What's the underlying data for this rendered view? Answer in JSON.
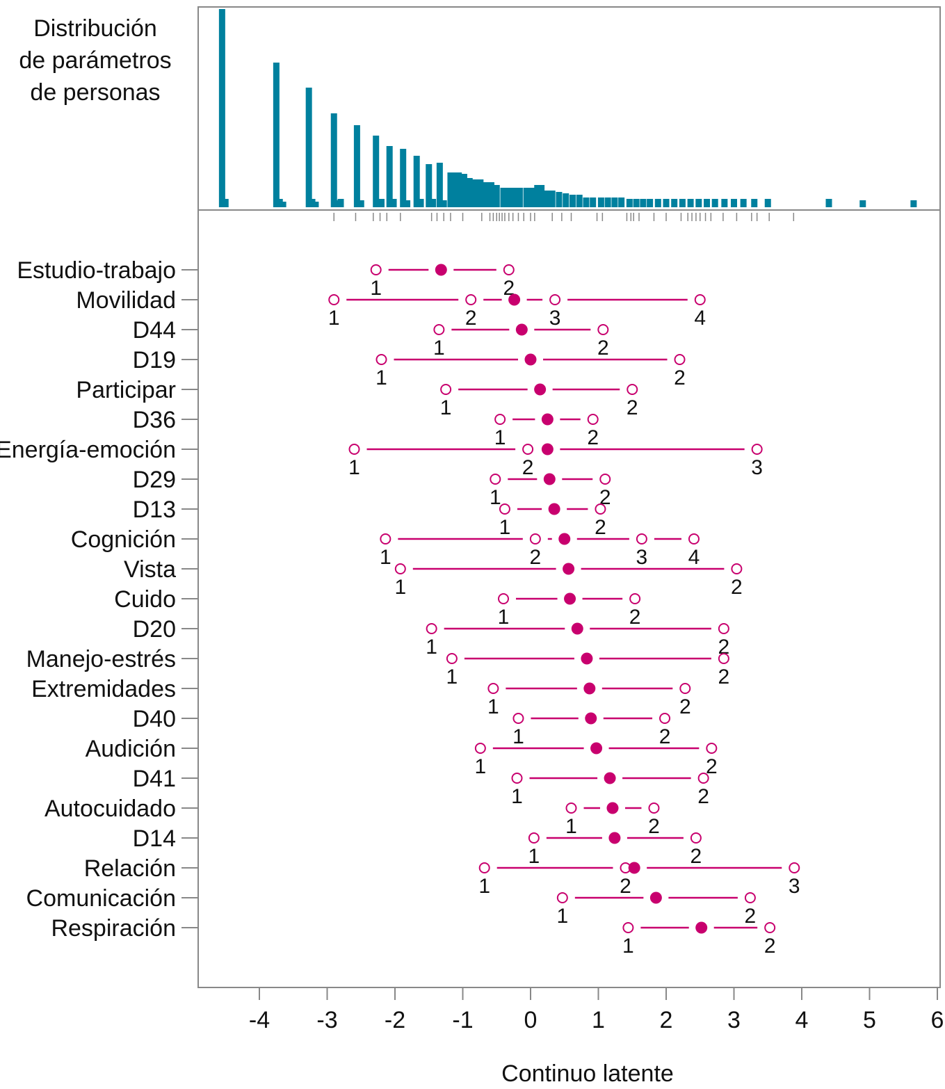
{
  "chart_data": [
    {
      "type": "bar",
      "title": "Distribución de parámetros de personas",
      "title_lines": [
        "Distribución",
        "de parámetros",
        "de personas"
      ],
      "colors": {
        "bar": "#00809E"
      },
      "xlim": [
        -4.9,
        6.0
      ],
      "bars": [
        {
          "x": -4.55,
          "h": 285
        },
        {
          "x": -4.5,
          "h": 12
        },
        {
          "x": -3.75,
          "h": 208
        },
        {
          "x": -3.7,
          "h": 12
        },
        {
          "x": -3.65,
          "h": 8
        },
        {
          "x": -3.27,
          "h": 172
        },
        {
          "x": -3.22,
          "h": 12
        },
        {
          "x": -3.17,
          "h": 8
        },
        {
          "x": -2.9,
          "h": 135
        },
        {
          "x": -2.85,
          "h": 10
        },
        {
          "x": -2.8,
          "h": 12
        },
        {
          "x": -2.56,
          "h": 118
        },
        {
          "x": -2.5,
          "h": 10
        },
        {
          "x": -2.28,
          "h": 103
        },
        {
          "x": -2.2,
          "h": 12
        },
        {
          "x": -2.08,
          "h": 88
        },
        {
          "x": -2.02,
          "h": 12
        },
        {
          "x": -1.88,
          "h": 84
        },
        {
          "x": -1.82,
          "h": 10
        },
        {
          "x": -1.68,
          "h": 74
        },
        {
          "x": -1.62,
          "h": 12
        },
        {
          "x": -1.5,
          "h": 62
        },
        {
          "x": -1.44,
          "h": 12
        },
        {
          "x": -1.34,
          "h": 64
        },
        {
          "x": -1.28,
          "h": 10
        },
        {
          "x": -1.18,
          "h": 50
        },
        {
          "x": -1.12,
          "h": 50
        },
        {
          "x": -1.06,
          "h": 50
        },
        {
          "x": -0.98,
          "h": 48
        },
        {
          "x": -0.9,
          "h": 42
        },
        {
          "x": -0.82,
          "h": 40
        },
        {
          "x": -0.74,
          "h": 40
        },
        {
          "x": -0.66,
          "h": 36
        },
        {
          "x": -0.58,
          "h": 36
        },
        {
          "x": -0.5,
          "h": 32
        },
        {
          "x": -0.4,
          "h": 28
        },
        {
          "x": -0.32,
          "h": 28
        },
        {
          "x": -0.24,
          "h": 28
        },
        {
          "x": -0.16,
          "h": 28
        },
        {
          "x": -0.06,
          "h": 28
        },
        {
          "x": 0.02,
          "h": 28
        },
        {
          "x": 0.1,
          "h": 32
        },
        {
          "x": 0.16,
          "h": 32
        },
        {
          "x": 0.24,
          "h": 24
        },
        {
          "x": 0.32,
          "h": 24
        },
        {
          "x": 0.42,
          "h": 22
        },
        {
          "x": 0.52,
          "h": 20
        },
        {
          "x": 0.62,
          "h": 18
        },
        {
          "x": 0.72,
          "h": 18
        },
        {
          "x": 0.82,
          "h": 14
        },
        {
          "x": 0.92,
          "h": 14
        },
        {
          "x": 1.04,
          "h": 14
        },
        {
          "x": 1.14,
          "h": 14
        },
        {
          "x": 1.24,
          "h": 14
        },
        {
          "x": 1.34,
          "h": 14
        },
        {
          "x": 1.46,
          "h": 12
        },
        {
          "x": 1.56,
          "h": 12
        },
        {
          "x": 1.66,
          "h": 12
        },
        {
          "x": 1.76,
          "h": 12
        },
        {
          "x": 1.88,
          "h": 12
        },
        {
          "x": 2.0,
          "h": 12
        },
        {
          "x": 2.12,
          "h": 12
        },
        {
          "x": 2.24,
          "h": 12
        },
        {
          "x": 2.36,
          "h": 12
        },
        {
          "x": 2.48,
          "h": 12
        },
        {
          "x": 2.6,
          "h": 12
        },
        {
          "x": 2.72,
          "h": 12
        },
        {
          "x": 2.86,
          "h": 12
        },
        {
          "x": 3.0,
          "h": 12
        },
        {
          "x": 3.14,
          "h": 12
        },
        {
          "x": 3.3,
          "h": 12
        },
        {
          "x": 3.5,
          "h": 12
        },
        {
          "x": 4.4,
          "h": 12
        },
        {
          "x": 4.9,
          "h": 10
        },
        {
          "x": 5.65,
          "h": 10
        }
      ],
      "rug": [
        -2.9,
        -2.58,
        -2.32,
        -2.22,
        -2.12,
        -1.92,
        -1.46,
        -1.38,
        -1.28,
        -1.18,
        -1.0,
        -0.72,
        -0.6,
        -0.55,
        -0.5,
        -0.46,
        -0.42,
        -0.38,
        -0.32,
        -0.26,
        -0.18,
        -0.1,
        0.0,
        0.06,
        0.32,
        0.46,
        0.6,
        0.98,
        1.06,
        1.42,
        1.48,
        1.52,
        1.6,
        1.82,
        2.0,
        2.22,
        2.32,
        2.38,
        2.44,
        2.5,
        2.58,
        2.66,
        2.84,
        3.04,
        3.26,
        3.34,
        3.52,
        3.88
      ]
    },
    {
      "type": "scatter",
      "xlabel": "Continuo latente",
      "xlim": [
        -4.9,
        6.0
      ],
      "xticks": [
        "-4",
        "-3",
        "-2",
        "-1",
        "0",
        "1",
        "2",
        "3",
        "4",
        "5",
        "6"
      ],
      "colors": {
        "marker": "#C8006E"
      },
      "items": [
        {
          "label": "Estudio-trabajo",
          "location": -1.32,
          "thresholds": [
            -2.28,
            -0.32
          ]
        },
        {
          "label": "Movilidad",
          "location": -0.24,
          "thresholds": [
            -2.9,
            -0.88,
            0.36,
            2.5
          ]
        },
        {
          "label": "D44",
          "location": -0.13,
          "thresholds": [
            -1.35,
            1.07
          ]
        },
        {
          "label": "D19",
          "location": 0.0,
          "thresholds": [
            -2.2,
            2.2
          ]
        },
        {
          "label": "Participar",
          "location": 0.14,
          "thresholds": [
            -1.25,
            1.5
          ]
        },
        {
          "label": "D36",
          "location": 0.25,
          "thresholds": [
            -0.45,
            0.92
          ]
        },
        {
          "label": "Energía-emoción",
          "location": 0.25,
          "thresholds": [
            -2.6,
            -0.04,
            3.34
          ]
        },
        {
          "label": "D29",
          "location": 0.28,
          "thresholds": [
            -0.52,
            1.1
          ]
        },
        {
          "label": "D13",
          "location": 0.35,
          "thresholds": [
            -0.38,
            1.03
          ]
        },
        {
          "label": "Cognición",
          "location": 0.5,
          "thresholds": [
            -2.14,
            0.07,
            1.64,
            2.41
          ]
        },
        {
          "label": "Vista",
          "location": 0.56,
          "thresholds": [
            -1.92,
            3.04
          ]
        },
        {
          "label": "Cuido",
          "location": 0.58,
          "thresholds": [
            -0.4,
            1.54
          ]
        },
        {
          "label": "D20",
          "location": 0.69,
          "thresholds": [
            -1.46,
            2.85
          ]
        },
        {
          "label": "Manejo-estrés",
          "location": 0.83,
          "thresholds": [
            -1.16,
            2.85
          ]
        },
        {
          "label": "Extremidades",
          "location": 0.87,
          "thresholds": [
            -0.55,
            2.28
          ]
        },
        {
          "label": "D40",
          "location": 0.89,
          "thresholds": [
            -0.18,
            1.98
          ]
        },
        {
          "label": "Audición",
          "location": 0.97,
          "thresholds": [
            -0.74,
            2.67
          ]
        },
        {
          "label": "D41",
          "location": 1.17,
          "thresholds": [
            -0.2,
            2.55
          ]
        },
        {
          "label": "Autocuidado",
          "location": 1.21,
          "thresholds": [
            0.6,
            1.82
          ]
        },
        {
          "label": "D14",
          "location": 1.24,
          "thresholds": [
            0.05,
            2.44
          ]
        },
        {
          "label": "Relación",
          "location": 1.53,
          "thresholds": [
            -0.68,
            1.4,
            3.89
          ]
        },
        {
          "label": "Comunicación",
          "location": 1.85,
          "thresholds": [
            0.47,
            3.24
          ]
        },
        {
          "label": "Respiración",
          "location": 2.52,
          "thresholds": [
            1.44,
            3.53
          ]
        }
      ]
    }
  ]
}
